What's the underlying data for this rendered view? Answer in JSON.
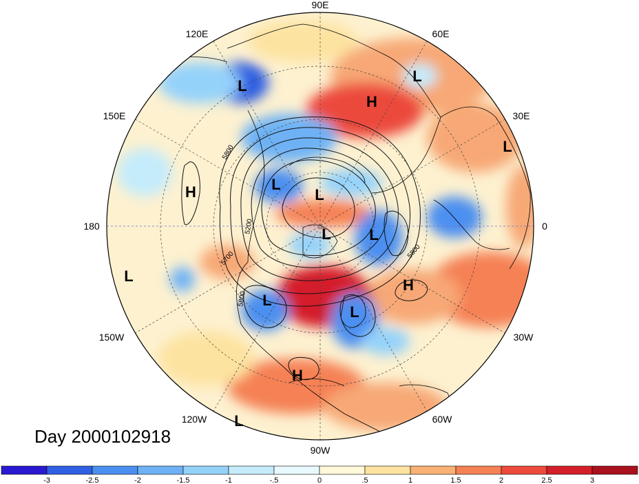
{
  "title": "Day 2000102918",
  "longitude_labels": [
    "90E",
    "60E",
    "30E",
    "0",
    "30W",
    "60W",
    "90W",
    "120W",
    "150W",
    "180",
    "150E",
    "120E"
  ],
  "contour_labels": [
    "5800",
    "5200",
    "5700",
    "5800",
    "5800"
  ],
  "pressure_centers": [
    {
      "type": "H",
      "label": "H"
    },
    {
      "type": "H",
      "label": "H"
    },
    {
      "type": "H",
      "label": "H"
    },
    {
      "type": "H",
      "label": "H"
    },
    {
      "type": "L",
      "label": "L"
    },
    {
      "type": "L",
      "label": "L"
    },
    {
      "type": "L",
      "label": "L"
    },
    {
      "type": "L",
      "label": "L"
    },
    {
      "type": "L",
      "label": "L"
    },
    {
      "type": "L",
      "label": "L"
    },
    {
      "type": "L",
      "label": "L"
    },
    {
      "type": "L",
      "label": "L"
    },
    {
      "type": "L",
      "label": "L"
    },
    {
      "type": "L",
      "label": "L"
    },
    {
      "type": "L",
      "label": "L"
    }
  ],
  "colorbar": {
    "labels": [
      "-3",
      "-2.5",
      "-2",
      "-1.5",
      "-1",
      "-.5",
      "0",
      ".5",
      "1",
      "1.5",
      "2",
      "2.5",
      "3"
    ],
    "colors": [
      "#2a19d0",
      "#2f5fe2",
      "#4b8ff0",
      "#6eb2f5",
      "#94d2fa",
      "#c4ecfb",
      "#e8f9fd",
      "#fff8d9",
      "#fde3a0",
      "#f9b274",
      "#f58155",
      "#ec4a3c",
      "#d41f2a",
      "#a8111d"
    ]
  },
  "colors": {
    "background": "#ffffff",
    "warm_anomaly": "#f26a3a",
    "cold_anomaly": "#4a90e8",
    "neutral": "#fdf1d0"
  }
}
